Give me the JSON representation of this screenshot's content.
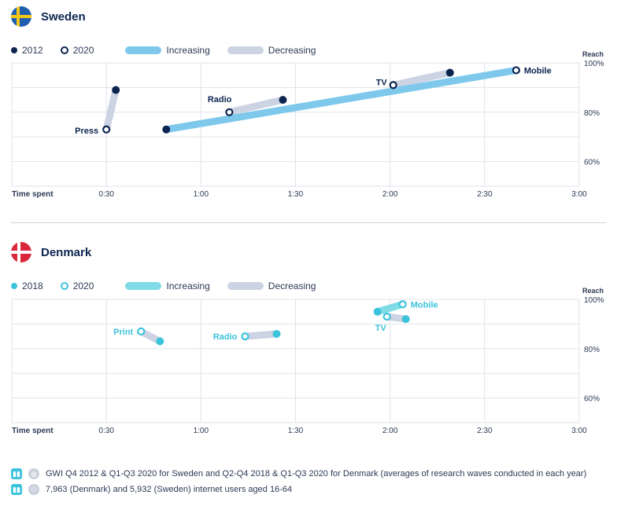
{
  "colors": {
    "sweden_dark": "#0c2550",
    "denmark_teal": "#3cc3dc",
    "increasing_sweden": "#7ec8ec",
    "increasing_denmark": "#7fdbe6",
    "decreasing": "#ccd3e3",
    "grid": "#dfe3ea"
  },
  "sweden": {
    "name": "Sweden",
    "legend": {
      "year_a": "2012",
      "year_b": "2020",
      "increasing": "Increasing",
      "decreasing": "Decreasing"
    }
  },
  "denmark": {
    "name": "Denmark",
    "legend": {
      "year_a": "2018",
      "year_b": "2020",
      "increasing": "Increasing",
      "decreasing": "Decreasing"
    }
  },
  "footer": {
    "source": "GWI Q4 2012 & Q1-Q3 2020 for Sweden and Q2-Q4 2018 & Q1-Q3 2020 for Denmark (averages of research waves conducted in each year)",
    "base": "7,963 (Denmark) and 5,932 (Sweden) internet users aged 16-64"
  },
  "chart_data": [
    {
      "type": "scatter",
      "title": "Sweden",
      "xlabel": "Time spent",
      "ylabel": "Reach",
      "x_unit": "minutes",
      "xlim": [
        0,
        180
      ],
      "ylim": [
        50,
        100
      ],
      "xticks": [
        30,
        60,
        90,
        120,
        150,
        180
      ],
      "xtick_labels": [
        "0:30",
        "1:00",
        "1:30",
        "2:00",
        "2:30",
        "3:00"
      ],
      "yticks": [
        60,
        80,
        100
      ],
      "ytick_labels": [
        "60%",
        "80%",
        "100%"
      ],
      "series_names": [
        "2012",
        "2020"
      ],
      "media": [
        {
          "name": "Press",
          "from": {
            "x": 33,
            "y": 89
          },
          "to": {
            "x": 30,
            "y": 73
          },
          "trend": "decreasing"
        },
        {
          "name": "Radio",
          "from": {
            "x": 86,
            "y": 85
          },
          "to": {
            "x": 69,
            "y": 80
          },
          "trend": "decreasing"
        },
        {
          "name": "TV",
          "from": {
            "x": 139,
            "y": 96
          },
          "to": {
            "x": 121,
            "y": 91
          },
          "trend": "decreasing"
        },
        {
          "name": "Mobile",
          "from": {
            "x": 49,
            "y": 73
          },
          "to": {
            "x": 160,
            "y": 97
          },
          "trend": "increasing"
        }
      ]
    },
    {
      "type": "scatter",
      "title": "Denmark",
      "xlabel": "Time spent",
      "ylabel": "Reach",
      "x_unit": "minutes",
      "xlim": [
        0,
        180
      ],
      "ylim": [
        50,
        100
      ],
      "xticks": [
        30,
        60,
        90,
        120,
        150,
        180
      ],
      "xtick_labels": [
        "0:30",
        "1:00",
        "1:30",
        "2:00",
        "2:30",
        "3:00"
      ],
      "yticks": [
        60,
        80,
        100
      ],
      "ytick_labels": [
        "60%",
        "80%",
        "100%"
      ],
      "series_names": [
        "2018",
        "2020"
      ],
      "media": [
        {
          "name": "Print",
          "from": {
            "x": 47,
            "y": 83
          },
          "to": {
            "x": 41,
            "y": 87
          },
          "trend": "decreasing"
        },
        {
          "name": "Radio",
          "from": {
            "x": 84,
            "y": 86
          },
          "to": {
            "x": 74,
            "y": 85
          },
          "trend": "decreasing"
        },
        {
          "name": "TV",
          "from": {
            "x": 125,
            "y": 92
          },
          "to": {
            "x": 119,
            "y": 93
          },
          "trend": "decreasing"
        },
        {
          "name": "Mobile",
          "from": {
            "x": 116,
            "y": 95
          },
          "to": {
            "x": 124,
            "y": 98
          },
          "trend": "increasing"
        }
      ]
    }
  ]
}
